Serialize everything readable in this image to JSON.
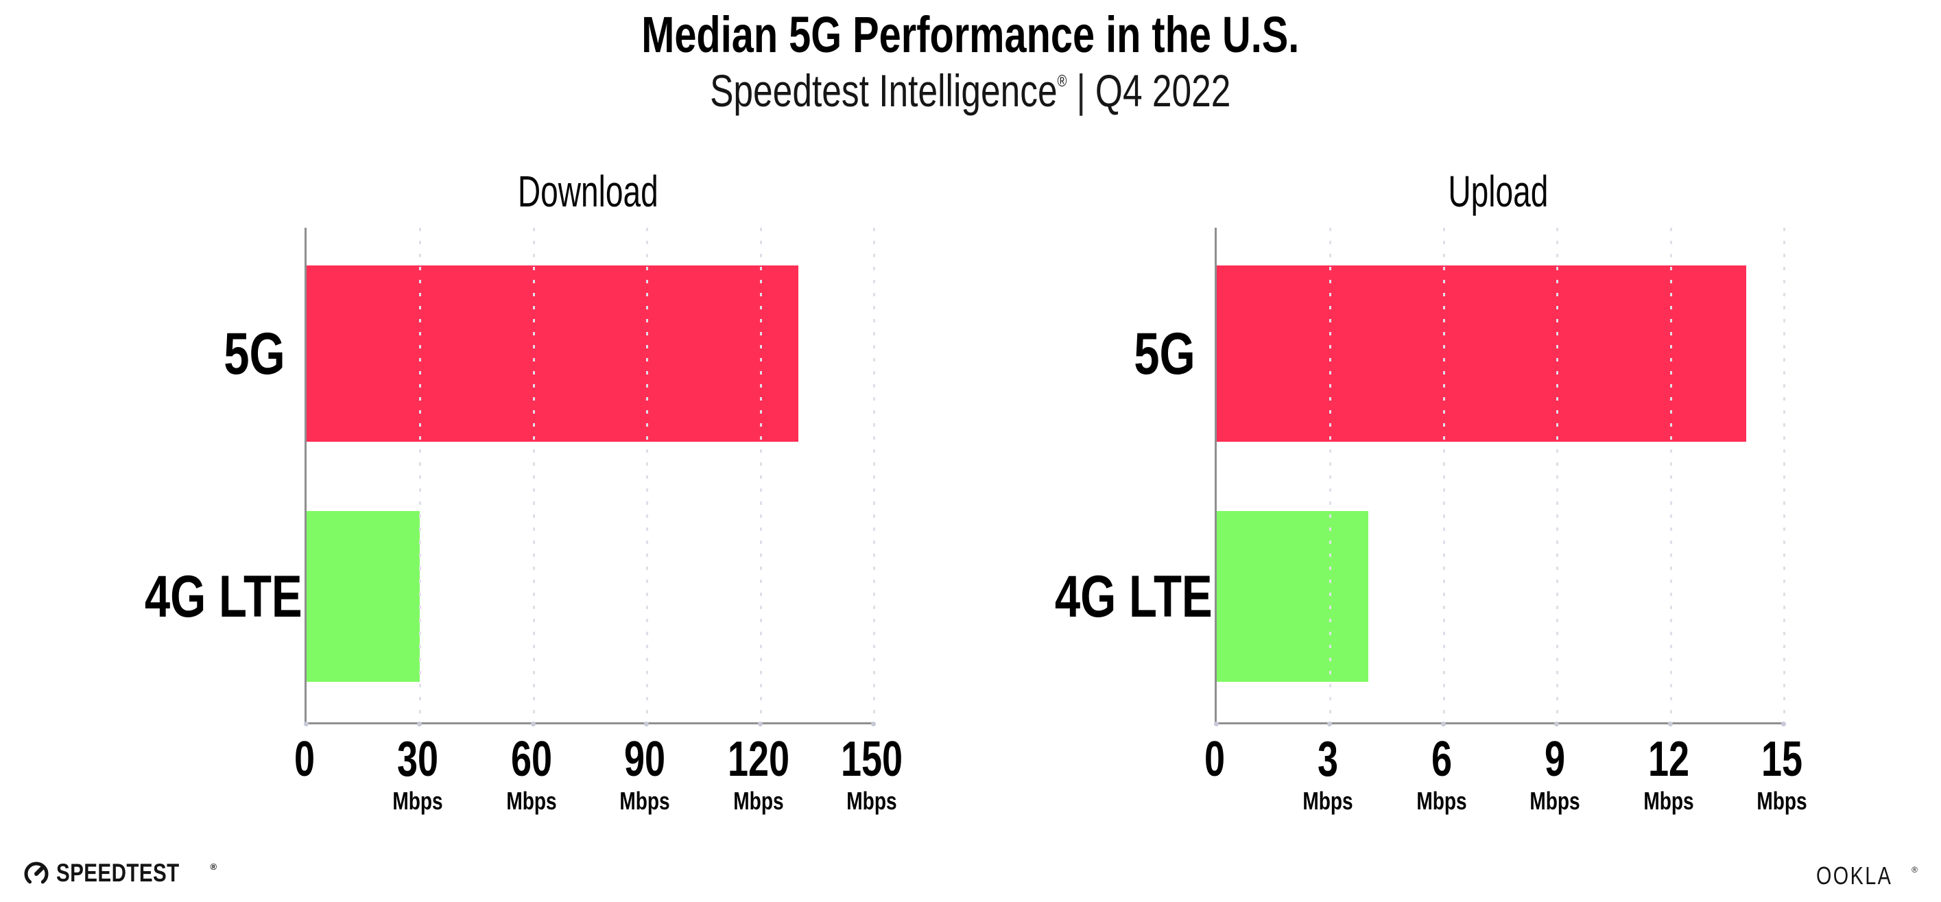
{
  "header": {
    "title": "Median 5G Performance in the U.S.",
    "subtitle_main": "Speedtest Intelligence",
    "subtitle_mark": "®",
    "subtitle_separator": "|",
    "subtitle_period": "Q4 2022"
  },
  "chart_data": [
    {
      "type": "bar",
      "orientation": "horizontal",
      "title": "Download",
      "categories": [
        "5G",
        "4G LTE"
      ],
      "values": [
        130,
        30
      ],
      "unit": "Mbps",
      "xlabel": "Mbps",
      "xlim": [
        0,
        150
      ],
      "xticks": [
        0,
        30,
        60,
        90,
        120,
        150
      ],
      "grid": "vertical dotted gridlines at each tick",
      "legend": "none",
      "series_colors": [
        "#FF2E55",
        "#80FA64"
      ],
      "note": "values estimated from bar lengths; no data labels shown"
    },
    {
      "type": "bar",
      "orientation": "horizontal",
      "title": "Upload",
      "categories": [
        "5G",
        "4G LTE"
      ],
      "values": [
        14,
        4
      ],
      "unit": "Mbps",
      "xlabel": "Mbps",
      "xlim": [
        0,
        15
      ],
      "xticks": [
        0,
        3,
        6,
        9,
        12,
        15
      ],
      "grid": "vertical dotted gridlines at each tick",
      "legend": "none",
      "series_colors": [
        "#FF2E55",
        "#80FA64"
      ],
      "note": "values estimated from bar lengths; no data labels shown"
    }
  ],
  "colors": {
    "bar_5g": "#FF2E55",
    "bar_4g_lte": "#80FA64",
    "axis_line": "#8f8f8f",
    "gridline": "#dfdfe9",
    "text": "#000000"
  },
  "footer": {
    "speedtest_label": "SPEEDTEST",
    "speedtest_mark": "®",
    "ookla_label": "OOKLA",
    "ookla_mark": "®"
  }
}
